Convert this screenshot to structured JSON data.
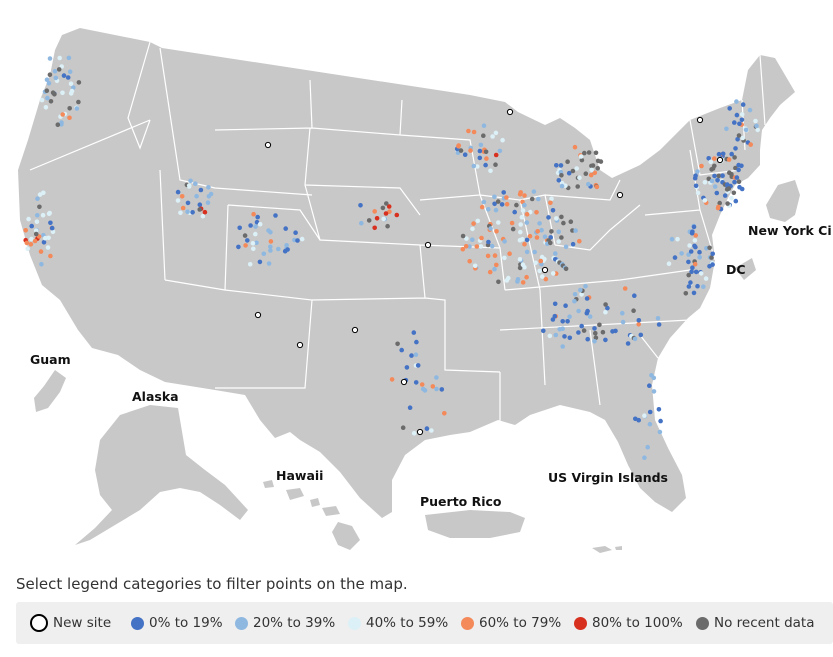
{
  "map": {
    "land_color": "#c8c8c8",
    "border_color": "#ffffff",
    "labels": {
      "guam": "Guam",
      "alaska": "Alaska",
      "hawaii": "Hawaii",
      "puerto_rico": "Puerto Rico",
      "us_virgin_islands": "US Virgin Islands",
      "new_york_city": "New York Ci",
      "dc": "DC"
    }
  },
  "instruction": "Select legend categories to filter points on the map.",
  "legend": {
    "items": [
      {
        "label": "New site",
        "color": "#ffffff",
        "border": "#000000",
        "type": "ring"
      },
      {
        "label": "0% to 19%",
        "color": "#4472c4",
        "type": "dot"
      },
      {
        "label": "20% to 39%",
        "color": "#8fb8e0",
        "type": "dot"
      },
      {
        "label": "40% to 59%",
        "color": "#dcf0f7",
        "type": "dot"
      },
      {
        "label": "60% to 79%",
        "color": "#f4895a",
        "type": "dot"
      },
      {
        "label": "80% to 100%",
        "color": "#d7301f",
        "type": "dot"
      },
      {
        "label": "No recent data",
        "color": "#6b6b6b",
        "type": "dot"
      }
    ]
  }
}
